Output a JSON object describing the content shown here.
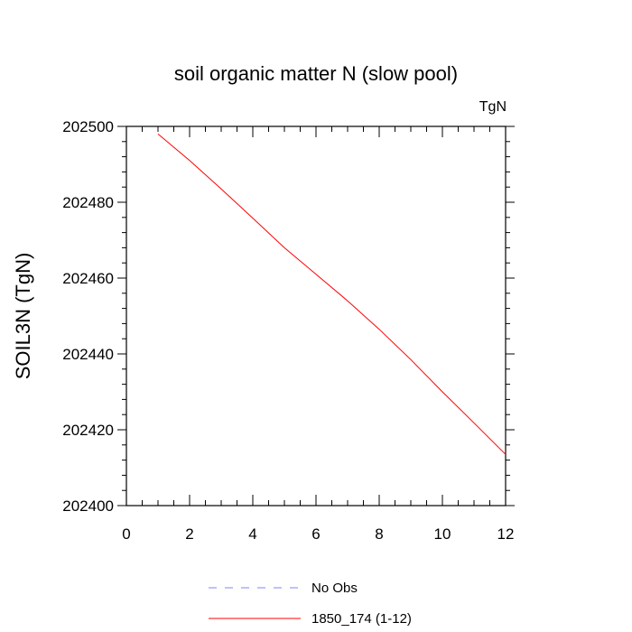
{
  "chart_data": {
    "type": "line",
    "title": "soil organic matter N (slow pool)",
    "units_label": "TgN",
    "ylabel": "SOIL3N  (TgN)",
    "xlabel": "",
    "xlim": [
      0,
      12
    ],
    "ylim": [
      202400,
      202500
    ],
    "xticks": [
      0,
      2,
      4,
      6,
      8,
      10,
      12
    ],
    "yticks": [
      202400,
      202420,
      202440,
      202460,
      202480,
      202500
    ],
    "grid": false,
    "legend_position": "bottom",
    "series": [
      {
        "name": "No Obs",
        "color": "#8080ff",
        "dash": "dashed",
        "x": [],
        "y": []
      },
      {
        "name": "1850_174 (1-12)",
        "color": "#ff0000",
        "dash": "solid",
        "x": [
          1,
          2,
          3,
          4,
          5,
          6,
          7,
          8,
          9,
          10,
          11,
          12
        ],
        "y": [
          202498,
          202491,
          202483.5,
          202475.8,
          202468,
          202461,
          202454,
          202446.5,
          202438.5,
          202430,
          202421.8,
          202413.5
        ]
      }
    ]
  }
}
